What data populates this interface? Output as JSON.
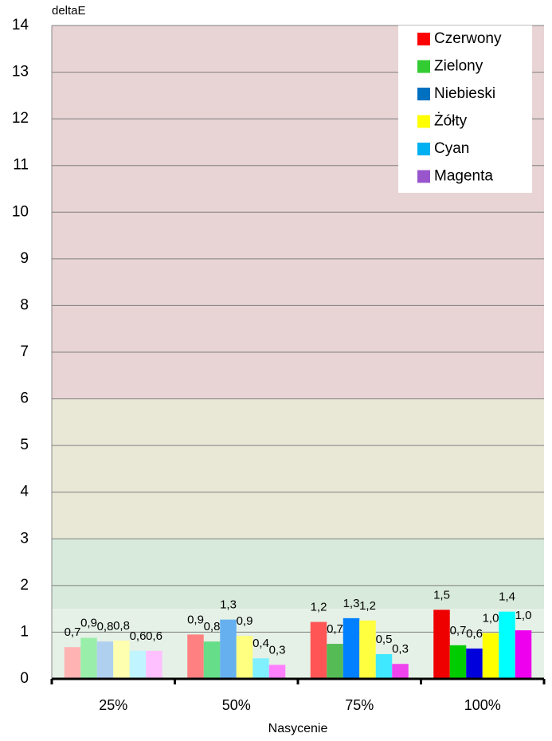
{
  "chart_data": {
    "type": "bar",
    "y_label": "deltaE",
    "x_label": "Nasycenie",
    "categories": [
      "25%",
      "50%",
      "75%",
      "100%"
    ],
    "ylim": [
      0,
      14
    ],
    "yticks": [
      0,
      1,
      2,
      3,
      4,
      5,
      6,
      7,
      8,
      9,
      10,
      11,
      12,
      13,
      14
    ],
    "grid": true,
    "bands": [
      {
        "from": 6,
        "to": 14,
        "color": "#e8d4d5"
      },
      {
        "from": 3,
        "to": 6,
        "color": "#e9e8d6"
      },
      {
        "from": 1.5,
        "to": 3,
        "color": "#d8eadb"
      },
      {
        "from": 0,
        "to": 1.5,
        "color": "#e5f1e6"
      }
    ],
    "legend_position": "upper right",
    "series": [
      {
        "name": "Czerwony",
        "color": "#ff0000",
        "bar_colors": [
          "#ffb3b3",
          "#ff8080",
          "#ff5555",
          "#ee0000"
        ],
        "values": [
          0.68,
          0.95,
          1.22,
          1.48
        ],
        "value_labels": [
          "0,7",
          "0,9",
          "1,2",
          "1,5"
        ]
      },
      {
        "name": "Zielony",
        "color": "#33cc33",
        "bar_colors": [
          "#99eeaa",
          "#66dd88",
          "#55bb55",
          "#00cc00"
        ],
        "values": [
          0.88,
          0.8,
          0.75,
          0.72
        ],
        "value_labels": [
          "0,9",
          "0,8",
          "0,7",
          "0,7"
        ]
      },
      {
        "name": "Niebieski",
        "color": "#0070c0",
        "bar_colors": [
          "#b0d0f0",
          "#66b0f0",
          "#0080ff",
          "#0000dd"
        ],
        "values": [
          0.8,
          1.27,
          1.3,
          0.65
        ],
        "value_labels": [
          "0,8",
          "1,3",
          "1,3",
          "0,6"
        ]
      },
      {
        "name": "Żółty",
        "color": "#ffff00",
        "bar_colors": [
          "#ffffb0",
          "#ffff80",
          "#ffff40",
          "#ffff00"
        ],
        "values": [
          0.82,
          0.92,
          1.25,
          0.98
        ],
        "value_labels": [
          "0,8",
          "0,9",
          "1,2",
          "1,0"
        ]
      },
      {
        "name": "Cyan",
        "color": "#00b0f0",
        "bar_colors": [
          "#c0f4ff",
          "#80f0ff",
          "#40e8ff",
          "#00ffff"
        ],
        "values": [
          0.6,
          0.44,
          0.53,
          1.44
        ],
        "value_labels": [
          "0,6",
          "0,4",
          "0,5",
          "1,4"
        ]
      },
      {
        "name": "Magenta",
        "color": "#9955cc",
        "bar_colors": [
          "#ffc0ff",
          "#ff80ff",
          "#ee44ee",
          "#ee00ee"
        ],
        "values": [
          0.6,
          0.3,
          0.32,
          1.04
        ],
        "value_labels": [
          "0,6",
          "0,3",
          "0,3",
          "1,0"
        ]
      }
    ]
  }
}
